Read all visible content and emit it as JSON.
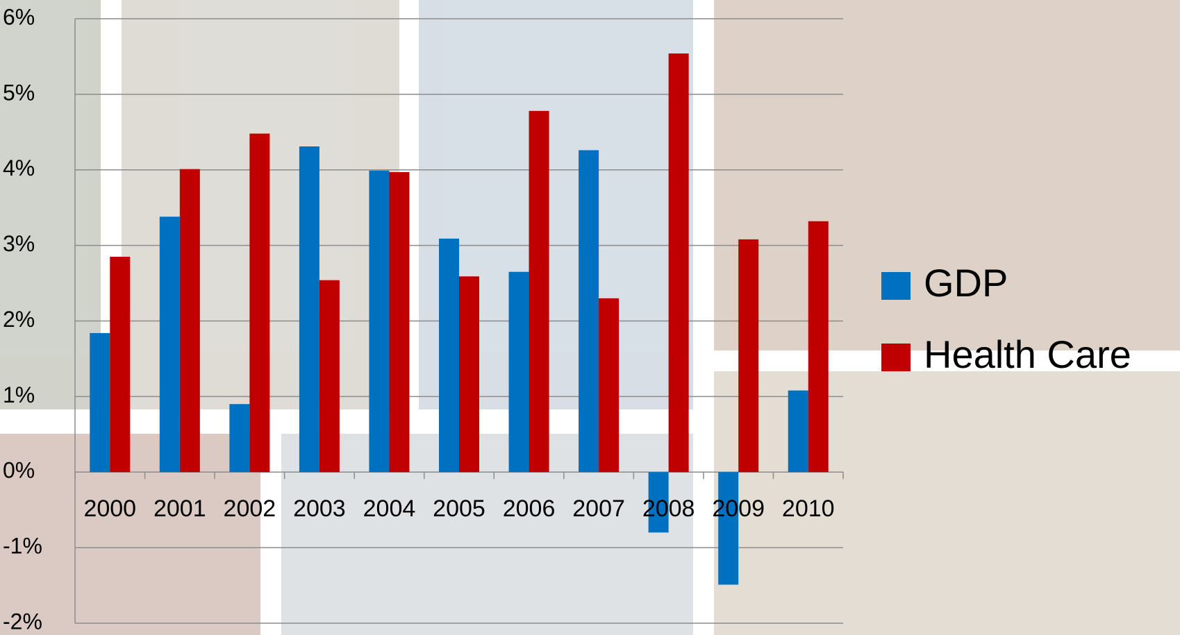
{
  "chart_data": {
    "type": "bar",
    "categories": [
      "2000",
      "2001",
      "2002",
      "2003",
      "2004",
      "2005",
      "2006",
      "2007",
      "2008",
      "2009",
      "2010"
    ],
    "series": [
      {
        "name": "GDP",
        "color": "#0070c0",
        "values": [
          1.84,
          3.38,
          0.9,
          4.31,
          3.99,
          3.09,
          2.65,
          4.26,
          -0.8,
          -1.49,
          1.08
        ]
      },
      {
        "name": "Health Care",
        "color": "#c00000",
        "values": [
          2.85,
          4.01,
          4.48,
          2.54,
          3.97,
          2.59,
          4.78,
          2.3,
          5.54,
          3.08,
          3.32
        ]
      }
    ],
    "ylim": [
      -2,
      6
    ],
    "yticks": [
      {
        "value": -2,
        "label": "-2%"
      },
      {
        "value": -1,
        "label": "-1%"
      },
      {
        "value": 0,
        "label": "0%"
      },
      {
        "value": 1,
        "label": "1%"
      },
      {
        "value": 2,
        "label": "2%"
      },
      {
        "value": 3,
        "label": "3%"
      },
      {
        "value": 4,
        "label": "4%"
      },
      {
        "value": 5,
        "label": "5%"
      },
      {
        "value": 6,
        "label": "6%"
      }
    ],
    "grid": true,
    "legend": "right"
  }
}
